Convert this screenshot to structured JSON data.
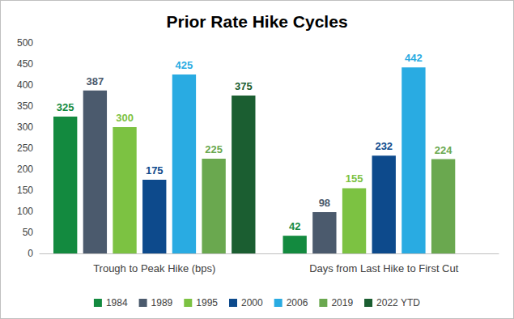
{
  "chart_data": {
    "type": "bar",
    "title": "Prior Rate Hike Cycles",
    "categories": [
      "Trough to Peak Hike (bps)",
      "Days from Last Hike to First Cut"
    ],
    "series": [
      {
        "name": "1984",
        "color": "#138a3f",
        "values": [
          325,
          42
        ]
      },
      {
        "name": "1989",
        "color": "#4b5a6d",
        "values": [
          387,
          98
        ]
      },
      {
        "name": "1995",
        "color": "#7cc242",
        "values": [
          300,
          155
        ]
      },
      {
        "name": "2000",
        "color": "#0d4a8c",
        "values": [
          175,
          232
        ]
      },
      {
        "name": "2006",
        "color": "#29abe2",
        "values": [
          425,
          442
        ]
      },
      {
        "name": "2019",
        "color": "#6aa84f",
        "values": [
          225,
          224
        ]
      },
      {
        "name": "2022 YTD",
        "color": "#1b5e31",
        "values": [
          375,
          null
        ]
      }
    ],
    "ylim": [
      0,
      500
    ],
    "yticks": [
      0,
      50,
      100,
      150,
      200,
      250,
      300,
      350,
      400,
      450,
      500
    ],
    "grid": false,
    "legend": "bottom",
    "data_labels": true
  }
}
